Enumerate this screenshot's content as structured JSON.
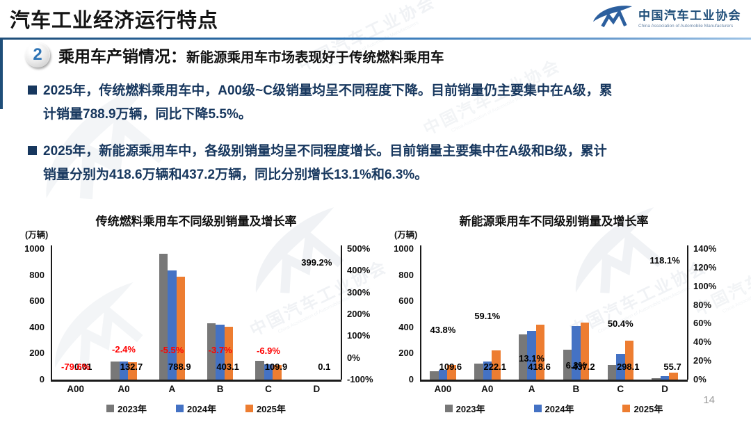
{
  "slide": {
    "title": "汽车工业经济运行特点",
    "page_number": "14"
  },
  "logo": {
    "glyph": "CM",
    "name_cn": "中国汽车工业协会",
    "name_en": "China Association of Automobile Manufacturers"
  },
  "section": {
    "number": "2",
    "heading": "乘用车产销情况：",
    "subheading": "新能源乘用车市场表现好于传统燃料乘用车"
  },
  "bullets": [
    {
      "lines": [
        "2025年，传统燃料乘用车中，A00级~C级销量均呈不同程度下降。目前销量仍主要集中在A级，累",
        "计销量788.9万辆，同比下降5.5%。"
      ]
    },
    {
      "lines": [
        "2025年，新能源乘用车中，各级别销量均呈不同程度增长。目前销量主要集中在A级和B级，累计",
        "销量分别为418.6万辆和437.2万辆，同比分别增长13.1%和6.3%。"
      ]
    }
  ],
  "watermark": {
    "text_cn": "中国汽车工业协会",
    "text_en": "China Association of Automobile Manufacturers"
  },
  "colors": {
    "accent_blue": "#2E74B5",
    "dark_navy": "#17375E",
    "bar_2023": "#787878",
    "bar_2024": "#4472C4",
    "bar_2025": "#ED7D31",
    "negative_label": "#FF0000"
  },
  "chart_data": [
    {
      "type": "bar",
      "title": "传统燃料乘用车不同级别销量及增长率",
      "unit_label": "(万辆)",
      "categories": [
        "A00",
        "A0",
        "A",
        "B",
        "C",
        "D"
      ],
      "series": [
        {
          "name": "2023年",
          "color": "#787878",
          "values": [
            0.05,
            140,
            963,
            430,
            141,
            0.02
          ]
        },
        {
          "name": "2024年",
          "color": "#4472C4",
          "values": [
            0.05,
            136,
            834.8,
            418.6,
            118,
            0.02
          ]
        },
        {
          "name": "2025年",
          "color": "#ED7D31",
          "values": [
            0.01,
            132.7,
            788.9,
            403.1,
            109.9,
            0.1
          ]
        }
      ],
      "value_labels": [
        "0.01",
        "132.7",
        "788.9",
        "403.1",
        "109.9",
        "0.1"
      ],
      "growth_labels": [
        {
          "text": "-79.6%",
          "pct": -79.6,
          "color": "#FF0000"
        },
        {
          "text": "-2.4%",
          "pct": -2.4,
          "color": "#FF0000"
        },
        {
          "text": "-5.5%",
          "pct": -5.5,
          "color": "#FF0000"
        },
        {
          "text": "-3.7%",
          "pct": -3.7,
          "color": "#FF0000"
        },
        {
          "text": "-6.9%",
          "pct": -6.9,
          "color": "#FF0000"
        },
        {
          "text": "399.2%",
          "pct": 399.2,
          "color": "#000000"
        }
      ],
      "left_axis": {
        "min": 0,
        "max": 1000,
        "step": 200
      },
      "right_axis": {
        "min": -100,
        "max": 500,
        "step": 100
      },
      "legend_position": "bottom",
      "grid": false
    },
    {
      "type": "bar",
      "title": "新能源乘用车不同级别销量及增长率",
      "unit_label": "(万辆)",
      "categories": [
        "A00",
        "A0",
        "A",
        "B",
        "C",
        "D"
      ],
      "series": [
        {
          "name": "2023年",
          "color": "#787878",
          "values": [
            65,
            122,
            345,
            228,
            112,
            9
          ]
        },
        {
          "name": "2024年",
          "color": "#4472C4",
          "values": [
            76.2,
            139.6,
            370.1,
            411.3,
            198.2,
            25.5
          ]
        },
        {
          "name": "2025年",
          "color": "#ED7D31",
          "values": [
            109.6,
            222.1,
            418.6,
            437.2,
            298.1,
            55.7
          ]
        }
      ],
      "value_labels": [
        "109.6",
        "222.1",
        "418.6",
        "437.2",
        "298.1",
        "55.7"
      ],
      "growth_labels": [
        {
          "text": "43.8%",
          "pct": 43.8,
          "color": "#000000"
        },
        {
          "text": "59.1%",
          "pct": 59.1,
          "color": "#000000"
        },
        {
          "text": "13.1%",
          "pct": 13.1,
          "color": "#000000"
        },
        {
          "text": "6.3%",
          "pct": 6.3,
          "color": "#000000"
        },
        {
          "text": "50.4%",
          "pct": 50.4,
          "color": "#000000"
        },
        {
          "text": "118.1%",
          "pct": 118.1,
          "color": "#000000"
        }
      ],
      "left_axis": {
        "min": 0,
        "max": 1000,
        "step": 200
      },
      "right_axis": {
        "min": 0,
        "max": 140,
        "step": 20
      },
      "legend_position": "bottom",
      "grid": false
    }
  ]
}
